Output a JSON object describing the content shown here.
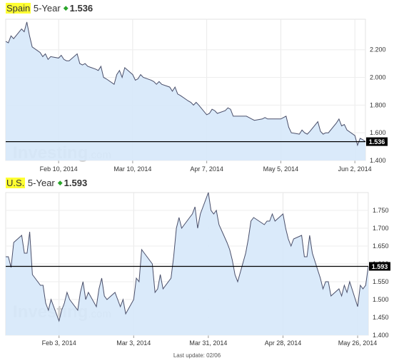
{
  "charts": [
    {
      "country": "Spain",
      "term": "5-Year",
      "price": "1.536",
      "arrow_icon": "up-arrow-icon",
      "arrow_color": "#2aa52a",
      "watermark": "Investing",
      "watermark_suffix": ".com",
      "x_tick_labels": [
        "Feb 10, 2014",
        "Mar 10, 2014",
        "Apr 7, 2014",
        "May 5, 2014",
        "Jun 2, 2014"
      ],
      "y_tick_labels": [
        "2.200",
        "2.000",
        "1.800",
        "1.600",
        "1.400"
      ],
      "current_value_label": "1.536"
    },
    {
      "country": "U.S.",
      "term": "5-Year",
      "price": "1.593",
      "arrow_icon": "up-arrow-icon",
      "arrow_color": "#2aa52a",
      "watermark": "Investing",
      "watermark_suffix": ".com",
      "x_tick_labels": [
        "Feb 3, 2014",
        "Mar 3, 2014",
        "Mar 31, 2014",
        "Apr 28, 2014",
        "May 26, 2014"
      ],
      "y_tick_labels": [
        "1.750",
        "1.700",
        "1.650",
        "1.600",
        "1.550",
        "1.500",
        "1.450",
        "1.400"
      ],
      "current_value_label": "1.593"
    }
  ],
  "chart_data": [
    {
      "type": "area",
      "title": "Spain 5-Year 1.536",
      "x_range": [
        "2014-01-21",
        "2014-06-06"
      ],
      "ylim": [
        1.4,
        2.42
      ],
      "yticks": [
        2.2,
        2.0,
        1.8,
        1.6,
        1.4
      ],
      "x_ticks": [
        "Feb 10, 2014",
        "Mar 10, 2014",
        "Apr 7, 2014",
        "May 5, 2014",
        "Jun 2, 2014"
      ],
      "grid": true,
      "current_value": 1.536,
      "line_color": "#4a4f6a",
      "fill_color": "#d6e8fa",
      "series": [
        {
          "x": [
            "2014-01-21",
            "2014-01-22",
            "2014-01-23",
            "2014-01-24",
            "2014-01-27",
            "2014-01-28",
            "2014-01-29",
            "2014-01-30",
            "2014-01-31",
            "2014-02-03",
            "2014-02-04",
            "2014-02-05",
            "2014-02-06",
            "2014-02-07",
            "2014-02-10",
            "2014-02-11",
            "2014-02-12",
            "2014-02-13",
            "2014-02-14",
            "2014-02-17",
            "2014-02-18",
            "2014-02-19",
            "2014-02-20",
            "2014-02-21",
            "2014-02-24",
            "2014-02-25",
            "2014-02-26",
            "2014-02-27",
            "2014-02-28",
            "2014-03-03",
            "2014-03-04",
            "2014-03-05",
            "2014-03-06",
            "2014-03-07",
            "2014-03-10",
            "2014-03-11",
            "2014-03-12",
            "2014-03-13",
            "2014-03-14",
            "2014-03-17",
            "2014-03-18",
            "2014-03-19",
            "2014-03-20",
            "2014-03-21",
            "2014-03-24",
            "2014-03-25",
            "2014-03-26",
            "2014-03-27",
            "2014-03-28",
            "2014-03-31",
            "2014-04-01",
            "2014-04-02",
            "2014-04-03",
            "2014-04-04",
            "2014-04-07",
            "2014-04-08",
            "2014-04-09",
            "2014-04-10",
            "2014-04-11",
            "2014-04-14",
            "2014-04-15",
            "2014-04-16",
            "2014-04-17",
            "2014-04-22",
            "2014-04-23",
            "2014-04-24",
            "2014-04-25",
            "2014-04-28",
            "2014-04-29",
            "2014-04-30",
            "2014-05-01",
            "2014-05-02",
            "2014-05-05",
            "2014-05-06",
            "2014-05-07",
            "2014-05-08",
            "2014-05-09",
            "2014-05-12",
            "2014-05-13",
            "2014-05-14",
            "2014-05-15",
            "2014-05-16",
            "2014-05-19",
            "2014-05-20",
            "2014-05-21",
            "2014-05-22",
            "2014-05-23",
            "2014-05-26",
            "2014-05-27",
            "2014-05-28",
            "2014-05-29",
            "2014-05-30",
            "2014-06-02",
            "2014-06-03",
            "2014-06-04",
            "2014-06-05",
            "2014-06-06"
          ],
          "values": [
            2.26,
            2.25,
            2.3,
            2.28,
            2.35,
            2.33,
            2.4,
            2.3,
            2.22,
            2.18,
            2.15,
            2.17,
            2.13,
            2.15,
            2.14,
            2.16,
            2.13,
            2.12,
            2.12,
            2.17,
            2.1,
            2.09,
            2.1,
            2.08,
            2.06,
            2.05,
            2.08,
            2.0,
            1.99,
            1.95,
            2.02,
            2.05,
            2.0,
            2.07,
            2.02,
            1.98,
            1.99,
            2.02,
            2.0,
            1.98,
            1.97,
            1.95,
            1.97,
            1.95,
            1.93,
            1.9,
            1.93,
            1.88,
            1.87,
            1.83,
            1.82,
            1.8,
            1.82,
            1.8,
            1.73,
            1.74,
            1.77,
            1.76,
            1.74,
            1.76,
            1.78,
            1.77,
            1.72,
            1.72,
            1.71,
            1.7,
            1.69,
            1.7,
            1.71,
            1.7,
            1.7,
            1.7,
            1.7,
            1.71,
            1.72,
            1.64,
            1.6,
            1.59,
            1.62,
            1.6,
            1.59,
            1.61,
            1.68,
            1.61,
            1.59,
            1.6,
            1.6,
            1.67,
            1.7,
            1.65,
            1.66,
            1.62,
            1.58,
            1.51,
            1.56,
            1.55,
            1.536
          ]
        }
      ]
    },
    {
      "type": "area",
      "title": "U.S. 5-Year 1.593",
      "x_range": [
        "2014-01-14",
        "2014-05-30"
      ],
      "ylim": [
        1.4,
        1.8
      ],
      "yticks": [
        1.75,
        1.7,
        1.65,
        1.6,
        1.55,
        1.5,
        1.45,
        1.4
      ],
      "x_ticks": [
        "Feb 3, 2014",
        "Mar 3, 2014",
        "Mar 31, 2014",
        "Apr 28, 2014",
        "May 26, 2014"
      ],
      "grid": true,
      "current_value": 1.593,
      "line_color": "#4a4f6a",
      "fill_color": "#d6e8fa",
      "series": [
        {
          "x": [
            "2014-01-14",
            "2014-01-15",
            "2014-01-16",
            "2014-01-17",
            "2014-01-20",
            "2014-01-21",
            "2014-01-22",
            "2014-01-23",
            "2014-01-24",
            "2014-01-27",
            "2014-01-28",
            "2014-01-29",
            "2014-01-30",
            "2014-01-31",
            "2014-02-03",
            "2014-02-04",
            "2014-02-05",
            "2014-02-06",
            "2014-02-07",
            "2014-02-10",
            "2014-02-11",
            "2014-02-12",
            "2014-02-13",
            "2014-02-14",
            "2014-02-17",
            "2014-02-18",
            "2014-02-19",
            "2014-02-20",
            "2014-02-21",
            "2014-02-24",
            "2014-02-25",
            "2014-02-26",
            "2014-02-27",
            "2014-02-28",
            "2014-03-03",
            "2014-03-04",
            "2014-03-05",
            "2014-03-06",
            "2014-03-07",
            "2014-03-10",
            "2014-03-11",
            "2014-03-12",
            "2014-03-13",
            "2014-03-14",
            "2014-03-17",
            "2014-03-18",
            "2014-03-19",
            "2014-03-20",
            "2014-03-21",
            "2014-03-24",
            "2014-03-25",
            "2014-03-26",
            "2014-03-27",
            "2014-03-28",
            "2014-03-31",
            "2014-04-01",
            "2014-04-02",
            "2014-04-03",
            "2014-04-04",
            "2014-04-07",
            "2014-04-08",
            "2014-04-09",
            "2014-04-10",
            "2014-04-11",
            "2014-04-14",
            "2014-04-15",
            "2014-04-16",
            "2014-04-17",
            "2014-04-21",
            "2014-04-22",
            "2014-04-23",
            "2014-04-24",
            "2014-04-25",
            "2014-04-28",
            "2014-04-29",
            "2014-04-30",
            "2014-05-01",
            "2014-05-02",
            "2014-05-05",
            "2014-05-06",
            "2014-05-07",
            "2014-05-08",
            "2014-05-09",
            "2014-05-12",
            "2014-05-13",
            "2014-05-14",
            "2014-05-15",
            "2014-05-16",
            "2014-05-19",
            "2014-05-20",
            "2014-05-21",
            "2014-05-22",
            "2014-05-23",
            "2014-05-26",
            "2014-05-27",
            "2014-05-28",
            "2014-05-29",
            "2014-05-30"
          ],
          "values": [
            1.62,
            1.62,
            1.59,
            1.66,
            1.68,
            1.63,
            1.63,
            1.69,
            1.57,
            1.54,
            1.54,
            1.49,
            1.47,
            1.5,
            1.44,
            1.47,
            1.49,
            1.52,
            1.5,
            1.47,
            1.52,
            1.55,
            1.5,
            1.52,
            1.48,
            1.53,
            1.56,
            1.51,
            1.5,
            1.52,
            1.5,
            1.48,
            1.5,
            1.46,
            1.5,
            1.56,
            1.55,
            1.64,
            1.63,
            1.6,
            1.52,
            1.53,
            1.57,
            1.53,
            1.56,
            1.62,
            1.7,
            1.73,
            1.7,
            1.73,
            1.74,
            1.76,
            1.7,
            1.74,
            1.8,
            1.75,
            1.74,
            1.75,
            1.71,
            1.66,
            1.64,
            1.61,
            1.57,
            1.55,
            1.63,
            1.67,
            1.72,
            1.73,
            1.71,
            1.72,
            1.72,
            1.74,
            1.72,
            1.74,
            1.7,
            1.67,
            1.65,
            1.67,
            1.68,
            1.62,
            1.62,
            1.68,
            1.63,
            1.56,
            1.53,
            1.55,
            1.55,
            1.51,
            1.53,
            1.51,
            1.54,
            1.52,
            1.55,
            1.48,
            1.54,
            1.53,
            1.54,
            1.593
          ]
        }
      ]
    }
  ],
  "footer": {
    "last_update": "Last update: 02/06"
  }
}
